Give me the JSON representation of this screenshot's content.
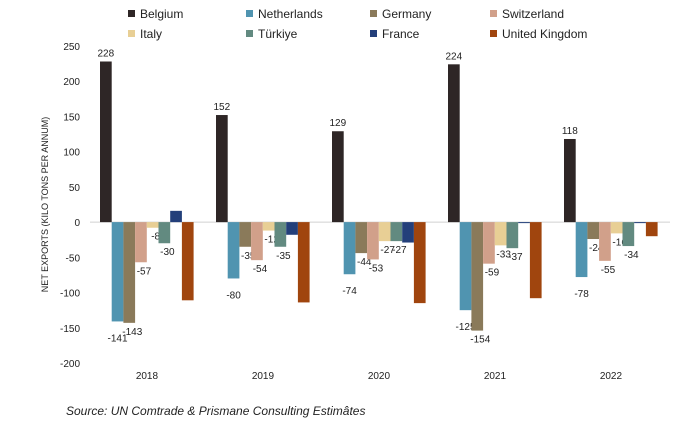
{
  "chart_data": {
    "type": "bar",
    "title": "",
    "ylabel": "NET EXPORTS (KILO TONS PER ANNUM)",
    "xlabel": "",
    "ylim": [
      -200,
      250
    ],
    "yticks": [
      250,
      200,
      150,
      100,
      50,
      0,
      -50,
      -100,
      -150,
      -200
    ],
    "categories": [
      "2018",
      "2019",
      "2020",
      "2021",
      "2022"
    ],
    "legend_position": "top",
    "series": [
      {
        "name": "Belgium",
        "color": "#2e2626",
        "values": [
          228,
          152,
          129,
          224,
          118
        ],
        "labels": [
          "228",
          "152",
          "129",
          "224",
          "118"
        ]
      },
      {
        "name": "Netherlands",
        "color": "#5094b0",
        "values": [
          -141,
          -80,
          -74,
          -125,
          -78
        ],
        "labels": [
          "-141",
          "-80",
          "-74",
          "-125",
          "-78"
        ]
      },
      {
        "name": "Germany",
        "color": "#8a7a5a",
        "values": [
          -143,
          -35,
          -44,
          -154,
          -24
        ],
        "labels": [
          "-143",
          "-35",
          "-44",
          "-154",
          "-24"
        ]
      },
      {
        "name": "Switzerland",
        "color": "#d1a08a",
        "values": [
          -57,
          -54,
          -53,
          -59,
          -55
        ],
        "labels": [
          "-57",
          "-54",
          "-53",
          "-59",
          "-55"
        ]
      },
      {
        "name": "Italy",
        "color": "#e8cf95",
        "values": [
          -8,
          -12,
          -27,
          -33,
          -16
        ],
        "labels": [
          "-8",
          "-12",
          "-27",
          "-33",
          "-16"
        ]
      },
      {
        "name": "Türkiye",
        "color": "#628a80",
        "values": [
          -30,
          -35,
          -27,
          -37,
          -34
        ],
        "labels": [
          "-30",
          "-35",
          "-27",
          "-37",
          "-34"
        ]
      },
      {
        "name": "France",
        "color": "#233f7a",
        "values": [
          16,
          -18,
          -29,
          -1,
          -1
        ],
        "labels": [
          "",
          "",
          "",
          "",
          ""
        ]
      },
      {
        "name": "United Kingdom",
        "color": "#a0450e",
        "values": [
          -111,
          -114,
          -115,
          -108,
          -20
        ],
        "labels": [
          "",
          "",
          "",
          "",
          ""
        ]
      }
    ]
  },
  "source": "Source: UN Comtrade & Prismane Consulting Estimâtes"
}
